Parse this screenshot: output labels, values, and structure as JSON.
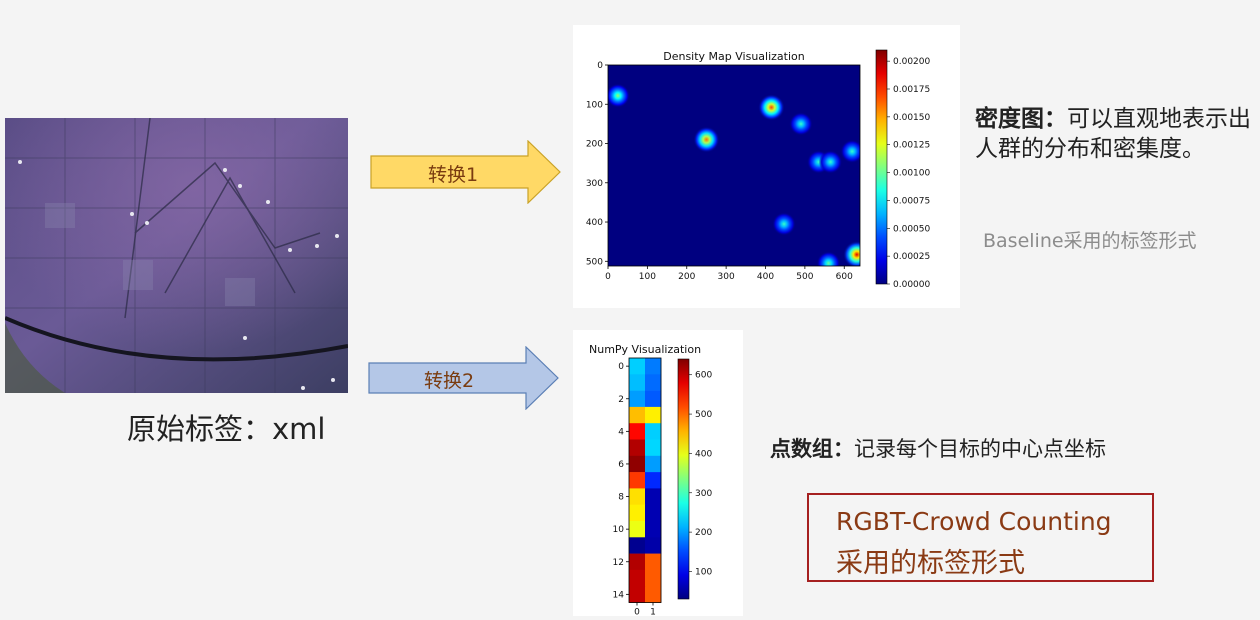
{
  "original": {
    "label": "原始标签：xml"
  },
  "arrows": [
    {
      "label": "转换1",
      "fill": "#ffd966",
      "stroke": "#c9a227"
    },
    {
      "label": "转换2",
      "fill": "#b4c7e7",
      "stroke": "#5b7fb5"
    }
  ],
  "density_text": {
    "title": "密度图：",
    "body": "可以直观地表示出人群的分布和密集度。",
    "note": "Baseline采用的标签形式"
  },
  "points_text": {
    "title": "点数组：",
    "body": "记录每个目标的中心点坐标"
  },
  "rgbt": {
    "line1": "RGBT-Crowd Counting",
    "line2": "采用的标签形式",
    "border_color": "#a52020",
    "text_color": "#8a3a14"
  },
  "chart_data": [
    {
      "type": "heatmap",
      "title": "Density Map Visualization",
      "xlim": [
        0,
        640
      ],
      "ylim": [
        512,
        0
      ],
      "x_ticks": [
        "0",
        "100",
        "200",
        "300",
        "400",
        "500",
        "600"
      ],
      "y_ticks": [
        "0",
        "100",
        "200",
        "300",
        "400",
        "500"
      ],
      "colorbar_range": [
        0,
        0.0021
      ],
      "colorbar_ticks": [
        "0.00000",
        "0.00025",
        "0.00050",
        "0.00075",
        "0.00100",
        "0.00125",
        "0.00150",
        "0.00175",
        "0.00200"
      ],
      "colormap": "jet",
      "blobs": [
        {
          "x": 25,
          "y": 78,
          "peak": 0.0011
        },
        {
          "x": 250,
          "y": 190,
          "peak": 0.0016
        },
        {
          "x": 415,
          "y": 108,
          "peak": 0.0017
        },
        {
          "x": 490,
          "y": 150,
          "peak": 0.0009
        },
        {
          "x": 535,
          "y": 247,
          "peak": 0.0009
        },
        {
          "x": 565,
          "y": 247,
          "peak": 0.0009
        },
        {
          "x": 620,
          "y": 220,
          "peak": 0.0009
        },
        {
          "x": 447,
          "y": 405,
          "peak": 0.0009
        },
        {
          "x": 560,
          "y": 505,
          "peak": 0.001
        },
        {
          "x": 632,
          "y": 483,
          "peak": 0.0019
        }
      ]
    },
    {
      "type": "heatmap",
      "title": "NumPy Visualization",
      "x_ticks": [
        "0",
        "1"
      ],
      "y_ticks": [
        "0",
        "2",
        "4",
        "6",
        "8",
        "10",
        "12",
        "14"
      ],
      "colorbar_range": [
        30,
        640
      ],
      "colorbar_ticks": [
        "100",
        "200",
        "300",
        "400",
        "500",
        "600"
      ],
      "colormap": "jet",
      "values": [
        [
          230,
          180
        ],
        [
          220,
          170
        ],
        [
          200,
          160
        ],
        [
          450,
          420
        ],
        [
          560,
          230
        ],
        [
          610,
          235
        ],
        [
          630,
          200
        ],
        [
          530,
          130
        ],
        [
          430,
          60
        ],
        [
          420,
          60
        ],
        [
          400,
          60
        ],
        [
          40,
          55
        ],
        [
          610,
          510
        ],
        [
          600,
          510
        ],
        [
          600,
          510
        ]
      ]
    }
  ]
}
